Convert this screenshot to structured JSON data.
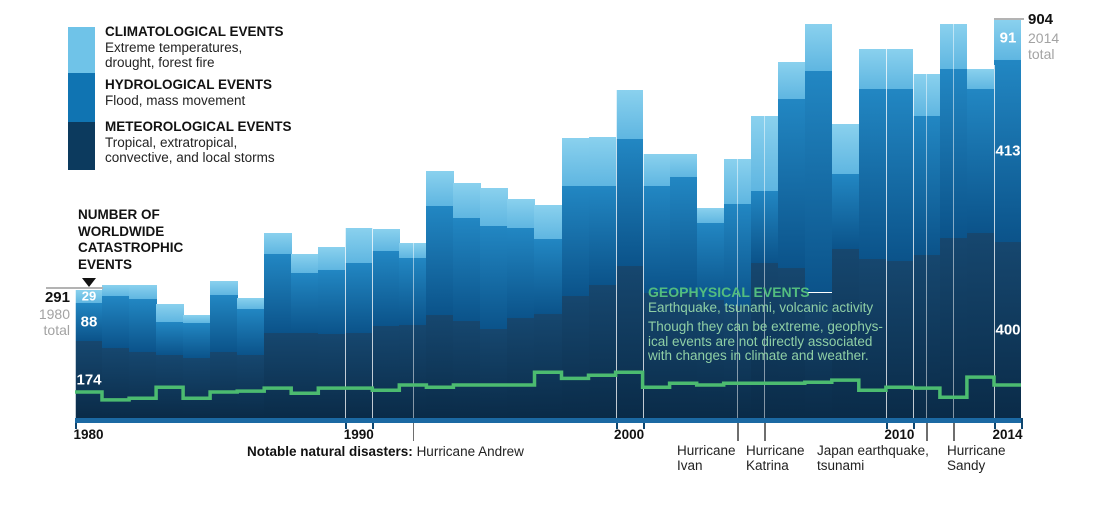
{
  "legend": {
    "items": [
      {
        "title": "CLIMATOLOGICAL EVENTS",
        "desc": "Extreme temperatures,\ndrought, forest fire",
        "color": "#6fc3e8"
      },
      {
        "title": "HYDROLOGICAL EVENTS",
        "desc": "Flood, mass movement",
        "color": "#1074b2"
      },
      {
        "title": "METEOROLOGICAL EVENTS",
        "desc": "Tropical, extratropical,\nconvective, and local storms",
        "color": "#0c3a5e"
      }
    ]
  },
  "left_annotation": {
    "heading": "NUMBER OF\nWORLDWIDE\nCATASTROPHIC\nEVENTS",
    "total_value": "291",
    "total_sub": "1980\ntotal",
    "bar_labels": [
      "29",
      "88",
      "174"
    ]
  },
  "right_annotation": {
    "total_value": "904",
    "total_sub": "2014\ntotal",
    "bar_labels": [
      "91",
      "413",
      "400"
    ]
  },
  "geophysical_note": {
    "title": "GEOPHYSICAL EVENTS",
    "subtitle": "Earthquake, tsunami, volcanic activity",
    "body": "Though they can be extreme, geophys-\nical events are not directly associated\nwith changes in climate and weather."
  },
  "x_axis": {
    "decade_labels": [
      "1980",
      "1990",
      "2000",
      "2010",
      "2014"
    ],
    "notable_prefix": "Notable natural disasters:",
    "notable_first_event": "Hurricane Andrew",
    "event_labels": [
      "Hurricane\nIvan",
      "Hurricane\nKatrina",
      "Japan earthquake,\ntsunami",
      "Hurricane\nSandy"
    ]
  },
  "chart_data": {
    "type": "bar",
    "subtype": "stacked-bars-with-step-line",
    "title": "Number of worldwide catastrophic events, 1980-2014",
    "x": [
      1980,
      1981,
      1982,
      1983,
      1984,
      1985,
      1986,
      1987,
      1988,
      1989,
      1990,
      1991,
      1992,
      1993,
      1994,
      1995,
      1996,
      1997,
      1998,
      1999,
      2000,
      2001,
      2002,
      2003,
      2004,
      2005,
      2006,
      2007,
      2008,
      2009,
      2010,
      2011,
      2012,
      2013,
      2014
    ],
    "series": [
      {
        "name": "Meteorological events",
        "color": "#0c3a5e",
        "values": [
          174,
          158,
          149,
          142,
          136,
          149,
          142,
          194,
          192,
          190,
          192,
          208,
          212,
          233,
          221,
          203,
          228,
          237,
          278,
          301,
          346,
          283,
          283,
          267,
          255,
          353,
          341,
          285,
          384,
          362,
          357,
          371,
          409,
          420,
          400
        ]
      },
      {
        "name": "Hydrological events",
        "color": "#1074b2",
        "values": [
          88,
          118,
          122,
          75,
          79,
          131,
          106,
          179,
          138,
          147,
          160,
          172,
          151,
          249,
          233,
          233,
          203,
          170,
          249,
          226,
          287,
          244,
          264,
          176,
          231,
          163,
          384,
          502,
          170,
          386,
          391,
          314,
          384,
          328,
          413
        ]
      },
      {
        "name": "Climatological events",
        "color": "#6fc3e8",
        "values": [
          29,
          27,
          32,
          43,
          20,
          32,
          25,
          47,
          43,
          52,
          79,
          50,
          34,
          79,
          79,
          86,
          66,
          77,
          108,
          111,
          113,
          72,
          52,
          34,
          102,
          170,
          84,
          108,
          113,
          90,
          90,
          97,
          102,
          45,
          91
        ]
      }
    ],
    "line_series": {
      "name": "Geophysical events",
      "color": "#4cbb70",
      "values": [
        59,
        41,
        45,
        70,
        45,
        59,
        61,
        68,
        56,
        68,
        68,
        63,
        75,
        70,
        75,
        75,
        75,
        104,
        90,
        97,
        104,
        70,
        79,
        75,
        79,
        79,
        79,
        81,
        86,
        63,
        70,
        68,
        47,
        93,
        75
      ]
    },
    "totals_called_out": {
      "1980": 291,
      "2014": 904
    },
    "segment_labels_1980": {
      "climatological": 29,
      "hydrological": 88,
      "meteorological": 174
    },
    "segment_labels_2014": {
      "climatological": 91,
      "hydrological": 413,
      "meteorological": 400
    },
    "annotated_event_years": [
      {
        "year": 1992,
        "label": "Hurricane Andrew"
      },
      {
        "year": 2004,
        "label": "Hurricane Ivan"
      },
      {
        "year": 2005,
        "label": "Hurricane Katrina"
      },
      {
        "year": 2011,
        "label": "Japan earthquake, tsunami"
      },
      {
        "year": 2012,
        "label": "Hurricane Sandy"
      }
    ],
    "decade_ticks": [
      1980,
      1990,
      2000,
      2010,
      2014
    ],
    "ylim": [
      0,
      950
    ],
    "y_axis_shown": false,
    "grid": "faint white vertical lines at decade bars and notable-event years",
    "legend_position": "top-left"
  }
}
